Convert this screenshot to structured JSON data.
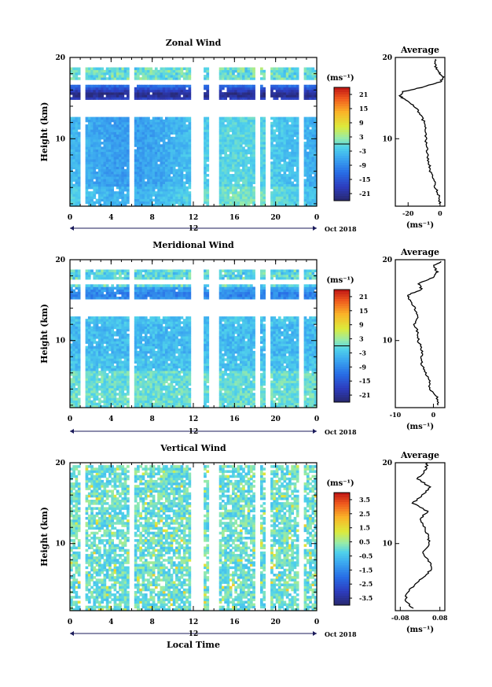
{
  "chart_data": [
    {
      "type": "heatmap",
      "title": "Zonal Wind",
      "ylabel": "Height (km)",
      "xlabel": "",
      "xlim": [
        0,
        24
      ],
      "ylim": [
        1.7,
        20
      ],
      "x_ticks": [
        "0",
        "4",
        "8",
        "12",
        "16",
        "20",
        "0"
      ],
      "y_ticks": [
        "10",
        "20"
      ],
      "date_bar": {
        "label": "12",
        "date": "Oct 2018"
      },
      "colorbar": {
        "unit": "(ms⁻¹)",
        "ticks": [
          "21",
          "15",
          "9",
          "3",
          "-3",
          "-9",
          "-15",
          "-21"
        ],
        "range": [
          -24,
          24
        ],
        "zero_line": 0
      },
      "description_values": {
        "lower_levels_ms": -5,
        "jet_level_km": 15.2,
        "jet_min_ms": -21,
        "upper_levels_ms": 2
      },
      "data_gaps_hours": [
        [
          1.0,
          1.3
        ],
        [
          5.9,
          6.2
        ],
        [
          11.8,
          13.0
        ],
        [
          13.5,
          13.8
        ],
        [
          14.1,
          14.4
        ],
        [
          18.1,
          18.4
        ],
        [
          19.0,
          19.3
        ],
        [
          22.3,
          22.6
        ]
      ],
      "profile": {
        "title": "Average",
        "xlabel": "(ms⁻¹)",
        "x_ticks": [
          "-20",
          "0"
        ],
        "xlim": [
          -28,
          3
        ],
        "ylim": [
          1.7,
          20
        ],
        "y_ticks": [
          "10",
          "20"
        ],
        "height_km": [
          2,
          3,
          4,
          5,
          6,
          7,
          8,
          9,
          10,
          11,
          12,
          13,
          14,
          14.8,
          15.3,
          15.8,
          16.4,
          17.0,
          17.6,
          18.2,
          19.0,
          19.8
        ],
        "values": [
          0,
          -1,
          -3,
          -4,
          -6,
          -7,
          -8,
          -8,
          -9,
          -9,
          -10,
          -12,
          -16,
          -22,
          -25,
          -23,
          -10,
          0,
          2,
          -1,
          -3,
          -3
        ]
      }
    },
    {
      "type": "heatmap",
      "title": "Meridional Wind",
      "ylabel": "Height (km)",
      "xlabel": "",
      "xlim": [
        0,
        24
      ],
      "ylim": [
        1.7,
        20
      ],
      "x_ticks": [
        "0",
        "4",
        "8",
        "12",
        "16",
        "20",
        "0"
      ],
      "y_ticks": [
        "10",
        "20"
      ],
      "date_bar": {
        "label": "12",
        "date": "Oct 2018"
      },
      "colorbar": {
        "unit": "(ms⁻¹)",
        "ticks": [
          "21",
          "15",
          "9",
          "3",
          "-3",
          "-9",
          "-15",
          "-21"
        ],
        "range": [
          -24,
          24
        ],
        "zero_line": 0
      },
      "profile": {
        "title": "Average",
        "xlabel": "(ms⁻¹)",
        "x_ticks": [
          "-10",
          "0"
        ],
        "xlim": [
          -10,
          3
        ],
        "ylim": [
          1.7,
          20
        ],
        "y_ticks": [
          "10",
          "20"
        ],
        "height_km": [
          2,
          3,
          4,
          5,
          6,
          7,
          8,
          9,
          10,
          11,
          12,
          13,
          14,
          15,
          15.6,
          16.3,
          17.0,
          17.8,
          18.5,
          19.2,
          19.8
        ],
        "values": [
          1,
          1,
          -1,
          -1,
          -2,
          -3,
          -3,
          -3,
          -4,
          -4,
          -5,
          -4,
          -5,
          -6,
          -7,
          -3,
          -4,
          0,
          1,
          0,
          2
        ]
      }
    },
    {
      "type": "heatmap",
      "title": "Vertical Wind",
      "ylabel": "Height (km)",
      "xlabel": "Local Time",
      "xlim": [
        0,
        24
      ],
      "ylim": [
        1.7,
        20
      ],
      "x_ticks": [
        "0",
        "4",
        "8",
        "12",
        "16",
        "20",
        "0"
      ],
      "y_ticks": [
        "10",
        "20"
      ],
      "date_bar": {
        "label": "12",
        "date": "Oct 2018"
      },
      "colorbar": {
        "unit": "(ms⁻¹)",
        "ticks": [
          "3.5",
          "2.5",
          "1.5",
          "0.5",
          "-0.5",
          "-1.5",
          "-2.5",
          "-3.5"
        ],
        "range": [
          -4,
          4
        ]
      },
      "profile": {
        "title": "Average",
        "xlabel": "(ms⁻¹)",
        "x_ticks": [
          "-0.08",
          "0.08"
        ],
        "xlim": [
          -0.1,
          0.1
        ],
        "ylim": [
          1.7,
          20
        ],
        "y_ticks": [
          "10",
          "20"
        ],
        "height_km": [
          2,
          3,
          4,
          5,
          6,
          7,
          8,
          9,
          10,
          11,
          12,
          13,
          14,
          15,
          16,
          17,
          18,
          19,
          20
        ],
        "values": [
          -0.03,
          -0.06,
          -0.05,
          -0.02,
          0.02,
          0.05,
          0.03,
          0.01,
          0.04,
          0.03,
          0.02,
          0.0,
          0.03,
          -0.03,
          0.01,
          0.04,
          -0.01,
          0.02,
          0.03
        ]
      }
    }
  ]
}
